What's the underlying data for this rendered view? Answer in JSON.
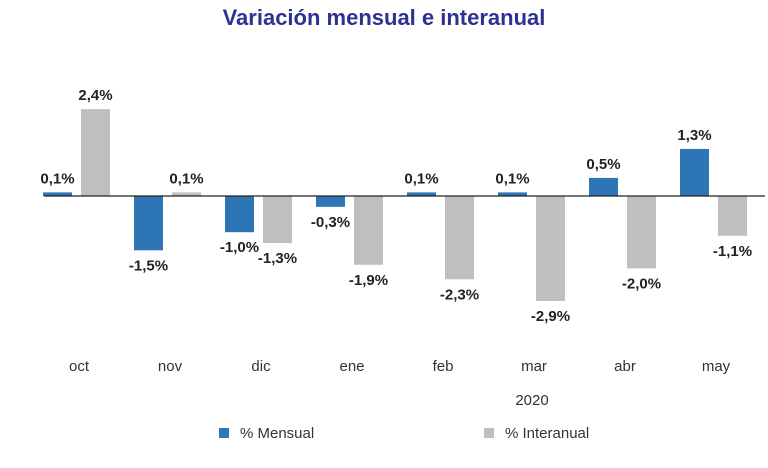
{
  "colors": {
    "title": "#2E3192",
    "mensual": "#2E75B6",
    "interanual": "#BFBFBF",
    "axis": "#222222"
  },
  "chart_data": {
    "type": "bar",
    "title": "Variación mensual e interanual",
    "categories": [
      "oct",
      "nov",
      "dic",
      "ene",
      "feb",
      "mar",
      "abr",
      "may"
    ],
    "category_group_label": "2020",
    "series": [
      {
        "name": "% Mensual",
        "values": [
          0.1,
          -1.5,
          -1.0,
          -0.3,
          0.1,
          0.1,
          0.5,
          1.3
        ],
        "labels": [
          "0,1%",
          "-1,5%",
          "-1,0%",
          "-0,3%",
          "0,1%",
          "0,1%",
          "0,5%",
          "1,3%"
        ]
      },
      {
        "name": "% Interanual",
        "values": [
          2.4,
          0.1,
          -1.3,
          -1.9,
          -2.3,
          -2.9,
          -2.0,
          -1.1
        ],
        "labels": [
          "2,4%",
          "0,1%",
          "-1,3%",
          "-1,9%",
          "-2,3%",
          "-2,9%",
          "-2,0%",
          "-1,1%"
        ]
      }
    ],
    "xlabel": "",
    "ylabel": "",
    "ylim": [
      -3.0,
      2.4
    ],
    "grid": false,
    "legend_position": "bottom"
  }
}
